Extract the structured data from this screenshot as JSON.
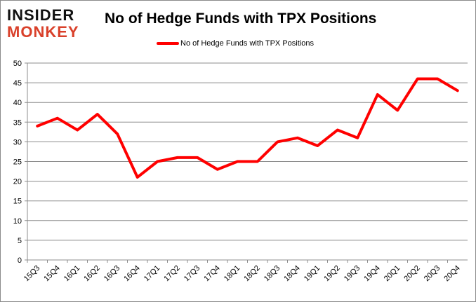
{
  "logo": {
    "line1": "INSIDER",
    "line2": "MONKEY"
  },
  "chart_data": {
    "type": "line",
    "title": "No of Hedge Funds with TPX Positions",
    "categories": [
      "15Q3",
      "15Q4",
      "16Q1",
      "16Q2",
      "16Q3",
      "16Q4",
      "17Q1",
      "17Q2",
      "17Q3",
      "17Q4",
      "18Q1",
      "18Q2",
      "18Q3",
      "18Q4",
      "19Q1",
      "19Q2",
      "19Q3",
      "19Q4",
      "20Q1",
      "20Q2",
      "20Q3",
      "20Q4"
    ],
    "series": [
      {
        "name": "No of Hedge Funds with TPX Positions",
        "color": "#ff0000",
        "values": [
          34,
          36,
          33,
          37,
          32,
          21,
          25,
          26,
          26,
          23,
          25,
          25,
          30,
          31,
          29,
          33,
          31,
          42,
          38,
          46,
          46,
          43
        ]
      }
    ],
    "ylim": [
      0,
      50
    ],
    "yticks": [
      0,
      5,
      10,
      15,
      20,
      25,
      30,
      35,
      40,
      45,
      50
    ],
    "grid": true,
    "legend": "top"
  }
}
